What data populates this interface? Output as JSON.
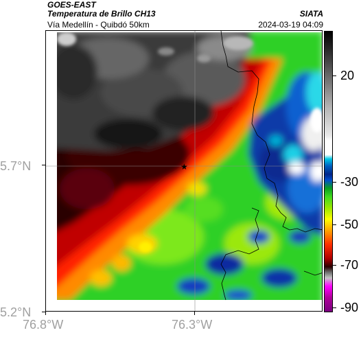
{
  "header": {
    "satellite": "GOES-EAST",
    "product": "Temperatura de Brillo CH13",
    "region": "Vía Medellín - Quibdó 50km",
    "organization": "SIATA",
    "datetime": "2024-03-19 04:09"
  },
  "axes": {
    "lat_labels": [
      "5.7°N",
      "5.2°N"
    ],
    "lon_labels": [
      "76.8°W",
      "76.3°W"
    ]
  },
  "colorbar": {
    "tick_labels": [
      "20",
      "-30",
      "-50",
      "-70",
      "-90"
    ]
  },
  "marker": {
    "symbol": "★"
  }
}
